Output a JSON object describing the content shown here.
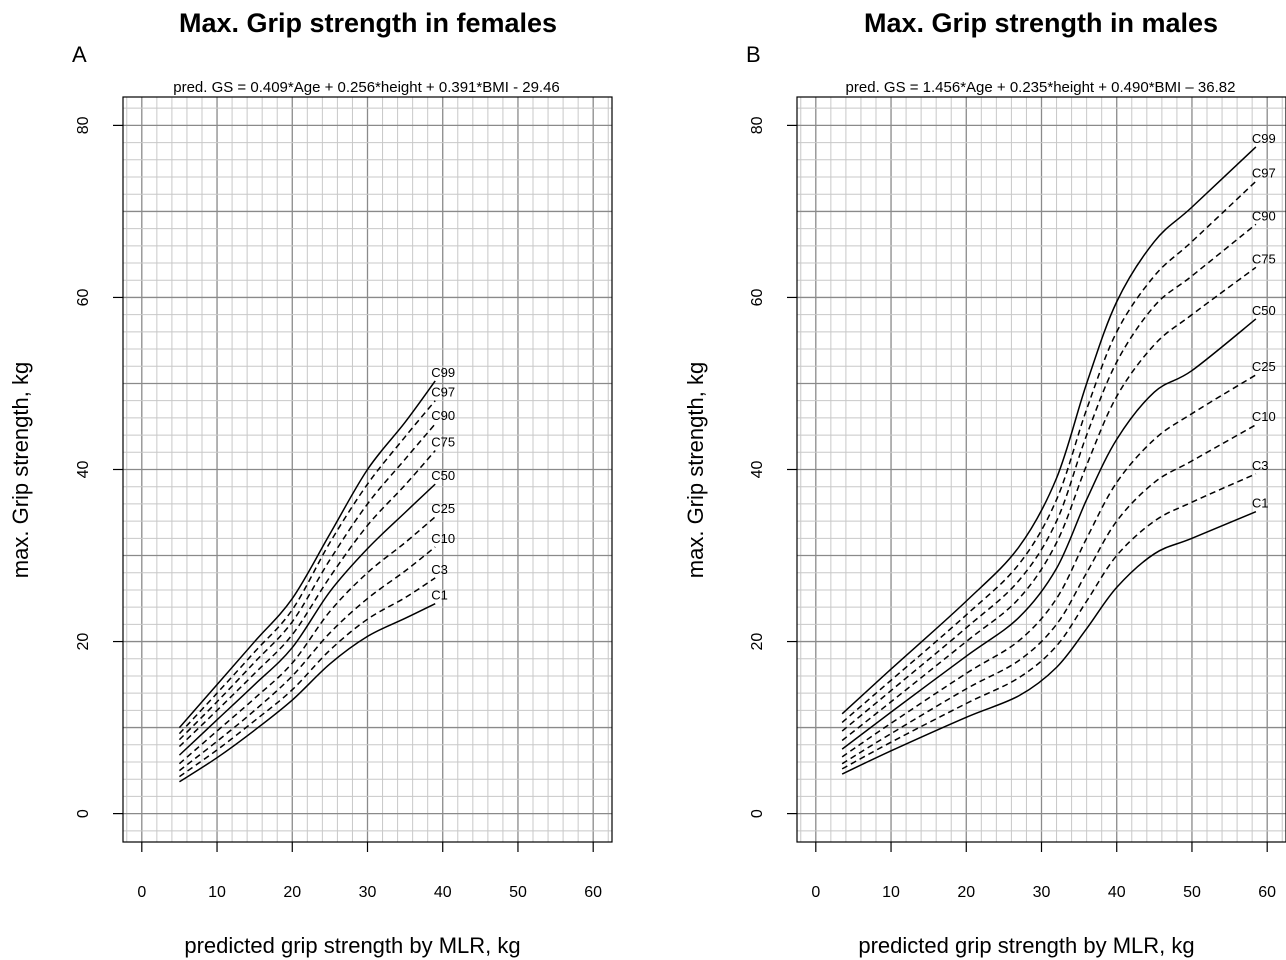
{
  "chart_data": [
    {
      "type": "line",
      "panel": "A",
      "title": "Max. Grip strength in females",
      "subtitle": "pred. GS = 0.409*Age + 0.256*height + 0.391*BMI - 29.46",
      "xlabel": "predicted grip strength by MLR, kg",
      "ylabel": "max. Grip strength, kg",
      "xlim": [
        -2.5,
        62.5
      ],
      "ylim": [
        -3.3,
        83.3
      ],
      "xticks": [
        0,
        10,
        20,
        30,
        40,
        50,
        60
      ],
      "yticks": [
        0,
        20,
        40,
        60,
        80
      ],
      "grid": true,
      "x": [
        5,
        10,
        15,
        20,
        25,
        30,
        35,
        39
      ],
      "series": [
        {
          "name": "C1",
          "dashed": false,
          "values": [
            3.7,
            6.5,
            9.7,
            13.2,
            17.4,
            20.6,
            22.7,
            24.4
          ]
        },
        {
          "name": "C3",
          "dashed": true,
          "values": [
            4.3,
            7.4,
            10.8,
            14.4,
            19.0,
            22.6,
            25.1,
            27.4
          ]
        },
        {
          "name": "C10",
          "dashed": true,
          "values": [
            5.0,
            8.4,
            12.0,
            16.0,
            21.0,
            25.0,
            28.2,
            31.0
          ]
        },
        {
          "name": "C25",
          "dashed": true,
          "values": [
            5.8,
            9.6,
            13.4,
            17.5,
            23.5,
            28.0,
            31.5,
            34.5
          ]
        },
        {
          "name": "C50",
          "dashed": false,
          "values": [
            6.8,
            10.9,
            15.0,
            19.3,
            25.8,
            30.8,
            35.0,
            38.3
          ]
        },
        {
          "name": "C75",
          "dashed": true,
          "values": [
            7.8,
            12.0,
            16.3,
            20.8,
            27.5,
            33.5,
            38.2,
            42.2
          ]
        },
        {
          "name": "C90",
          "dashed": true,
          "values": [
            8.6,
            13.0,
            17.6,
            22.3,
            29.5,
            36.0,
            41.2,
            45.3
          ]
        },
        {
          "name": "C97",
          "dashed": true,
          "values": [
            9.3,
            14.0,
            18.8,
            23.7,
            31.5,
            38.3,
            43.8,
            48.0
          ]
        },
        {
          "name": "C99",
          "dashed": false,
          "values": [
            10.0,
            15.0,
            20.0,
            25.0,
            32.5,
            40.0,
            45.5,
            50.3
          ]
        }
      ]
    },
    {
      "type": "line",
      "panel": "B",
      "title": "Max. Grip strength in males",
      "subtitle": "pred. GS = 1.456*Age + 0.235*height + 0.490*BMI – 36.82",
      "xlabel": "predicted grip strength by MLR, kg",
      "ylabel": "max. Grip strength, kg",
      "xlim": [
        -2.5,
        62.5
      ],
      "ylim": [
        -3.3,
        83.3
      ],
      "xticks": [
        0,
        10,
        20,
        30,
        40,
        50,
        60
      ],
      "yticks": [
        0,
        20,
        40,
        60,
        80
      ],
      "grid": true,
      "x": [
        3.5,
        10,
        20,
        27,
        32,
        36,
        40,
        45,
        50,
        58.5
      ],
      "series": [
        {
          "name": "C1",
          "dashed": false,
          "values": [
            4.6,
            7.3,
            11.2,
            13.7,
            17.0,
            21.5,
            26.3,
            30.2,
            32.0,
            35.1
          ]
        },
        {
          "name": "C3",
          "dashed": true,
          "values": [
            5.2,
            8.3,
            12.8,
            15.8,
            19.5,
            24.7,
            30.0,
            34.0,
            36.2,
            39.5
          ]
        },
        {
          "name": "C10",
          "dashed": true,
          "values": [
            5.8,
            9.3,
            14.5,
            17.8,
            22.0,
            28.0,
            34.0,
            38.5,
            41.0,
            45.2
          ]
        },
        {
          "name": "C25",
          "dashed": true,
          "values": [
            6.6,
            10.5,
            16.3,
            20.1,
            25.0,
            32.0,
            38.5,
            43.5,
            46.5,
            51.0
          ]
        },
        {
          "name": "C50",
          "dashed": false,
          "values": [
            7.5,
            11.8,
            18.3,
            22.8,
            28.5,
            36.5,
            43.5,
            49.0,
            51.5,
            57.5
          ]
        },
        {
          "name": "C75",
          "dashed": true,
          "values": [
            8.5,
            13.0,
            20.0,
            25.0,
            31.5,
            40.5,
            48.5,
            54.5,
            58.0,
            63.5
          ]
        },
        {
          "name": "C90",
          "dashed": true,
          "values": [
            9.6,
            14.3,
            21.6,
            27.1,
            34.0,
            44.0,
            52.5,
            59.0,
            62.5,
            68.5
          ]
        },
        {
          "name": "C97",
          "dashed": true,
          "values": [
            10.6,
            15.5,
            23.1,
            29.0,
            36.5,
            47.0,
            56.0,
            62.5,
            66.5,
            73.5
          ]
        },
        {
          "name": "C99",
          "dashed": false,
          "values": [
            11.6,
            16.8,
            24.7,
            31.0,
            39.0,
            50.0,
            59.5,
            66.5,
            70.5,
            77.5
          ]
        }
      ]
    }
  ]
}
